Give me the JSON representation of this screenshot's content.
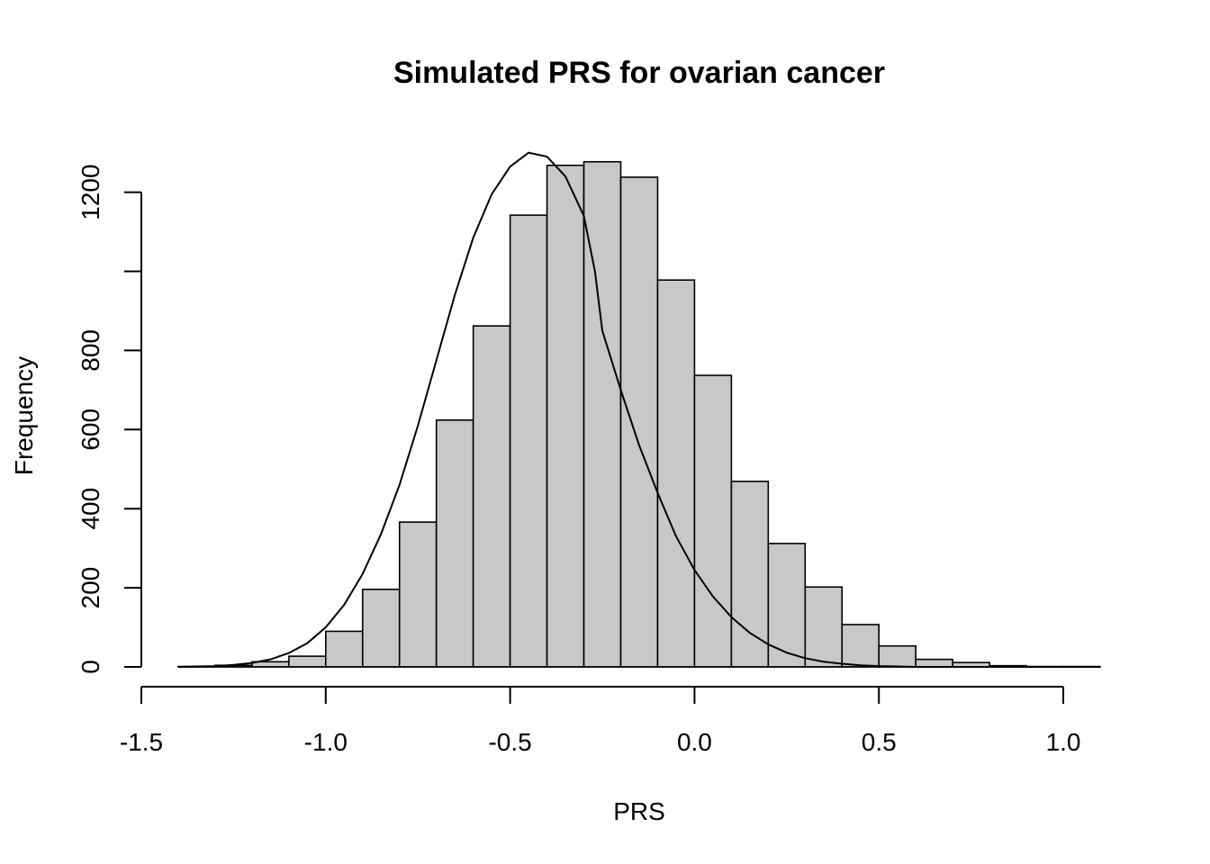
{
  "chart_data": {
    "type": "bar",
    "title": "Simulated PRS for ovarian cancer",
    "xlabel": "PRS",
    "ylabel": "Frequency",
    "xlim": [
      -1.5,
      1.1
    ],
    "ylim": [
      0,
      1300
    ],
    "x_ticks": [
      -1.5,
      -1.0,
      -0.5,
      0.0,
      0.5,
      1.0
    ],
    "x_tick_labels": [
      "-1.5",
      "-1.0",
      "-0.5",
      "0.0",
      "0.5",
      "1.0"
    ],
    "y_ticks": [
      0,
      200,
      400,
      600,
      800,
      1000,
      1200
    ],
    "y_tick_labels": [
      "0",
      "200",
      "400",
      "600",
      "800",
      "",
      "1200"
    ],
    "grid": false,
    "bar_fill": "#c8c8c8",
    "bar_stroke": "#000000",
    "bins": [
      {
        "start": -1.4,
        "end": -1.3,
        "count": 1
      },
      {
        "start": -1.3,
        "end": -1.2,
        "count": 4
      },
      {
        "start": -1.2,
        "end": -1.1,
        "count": 13
      },
      {
        "start": -1.1,
        "end": -1.0,
        "count": 27
      },
      {
        "start": -1.0,
        "end": -0.9,
        "count": 90
      },
      {
        "start": -0.9,
        "end": -0.8,
        "count": 196
      },
      {
        "start": -0.8,
        "end": -0.7,
        "count": 366
      },
      {
        "start": -0.7,
        "end": -0.6,
        "count": 624
      },
      {
        "start": -0.6,
        "end": -0.5,
        "count": 862
      },
      {
        "start": -0.5,
        "end": -0.4,
        "count": 1142
      },
      {
        "start": -0.4,
        "end": -0.3,
        "count": 1268
      },
      {
        "start": -0.3,
        "end": -0.2,
        "count": 1277
      },
      {
        "start": -0.2,
        "end": -0.1,
        "count": 1238
      },
      {
        "start": -0.1,
        "end": 0.0,
        "count": 978
      },
      {
        "start": 0.0,
        "end": 0.1,
        "count": 737
      },
      {
        "start": 0.1,
        "end": 0.2,
        "count": 469
      },
      {
        "start": 0.2,
        "end": 0.3,
        "count": 312
      },
      {
        "start": 0.3,
        "end": 0.4,
        "count": 202
      },
      {
        "start": 0.4,
        "end": 0.5,
        "count": 107
      },
      {
        "start": 0.5,
        "end": 0.6,
        "count": 53
      },
      {
        "start": 0.6,
        "end": 0.7,
        "count": 19
      },
      {
        "start": 0.7,
        "end": 0.8,
        "count": 11
      },
      {
        "start": 0.8,
        "end": 0.9,
        "count": 3
      },
      {
        "start": 0.9,
        "end": 1.0,
        "count": 1
      },
      {
        "start": 1.0,
        "end": 1.1,
        "count": 1
      }
    ],
    "density_curve": {
      "x": [
        -1.4,
        -1.35,
        -1.3,
        -1.25,
        -1.2,
        -1.15,
        -1.1,
        -1.05,
        -1.0,
        -0.95,
        -0.9,
        -0.85,
        -0.8,
        -0.75,
        -0.7,
        -0.65,
        -0.6,
        -0.55,
        -0.5,
        -0.45,
        -0.4,
        -0.35,
        -0.3,
        -0.27,
        -0.25,
        -0.2,
        -0.15,
        -0.1,
        -0.05,
        0.0,
        0.05,
        0.1,
        0.15,
        0.2,
        0.25,
        0.3,
        0.35,
        0.4,
        0.45,
        0.5,
        0.55,
        0.6,
        0.65,
        0.7,
        0.75,
        0.8,
        0.85,
        0.9,
        0.95,
        1.0,
        1.05,
        1.1
      ],
      "y": [
        0,
        1,
        2,
        5,
        10,
        19,
        35,
        60,
        100,
        157,
        235,
        336,
        460,
        610,
        775,
        940,
        1085,
        1195,
        1265,
        1300,
        1290,
        1240,
        1140,
        1000,
        850,
        700,
        560,
        440,
        330,
        245,
        178,
        126,
        86,
        57,
        36,
        22,
        13,
        8,
        4,
        2,
        1,
        0,
        0,
        0,
        0,
        0,
        0,
        0,
        0,
        0,
        0,
        0
      ]
    }
  }
}
